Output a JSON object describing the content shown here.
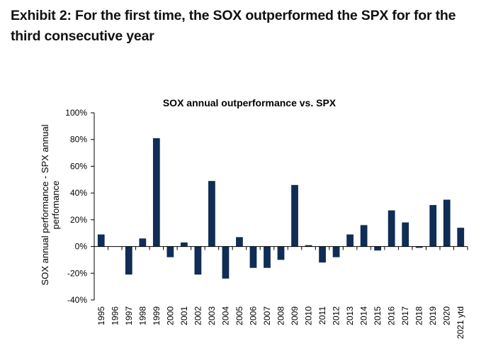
{
  "exhibit_title": "Exhibit 2: For the first time, the SOX outperformed the SPX for for the third consecutive year",
  "chart_data": {
    "type": "bar",
    "title": "SOX annual outperformance vs. SPX",
    "xlabel": "",
    "ylabel": "SOX annual performance - SPX annual perfomance",
    "ylabel_lines": [
      "SOX annual performance - SPX annual",
      "perfomance"
    ],
    "ylim": [
      -40,
      100
    ],
    "yticks": [
      -40,
      -20,
      0,
      20,
      40,
      60,
      80,
      100
    ],
    "ytick_labels": [
      "-40%",
      "-20%",
      "0%",
      "20%",
      "40%",
      "60%",
      "80%",
      "100%"
    ],
    "y_unit": "%",
    "grid": false,
    "bar_color": "#0f2d55",
    "categories": [
      "1995",
      "1996",
      "1997",
      "1998",
      "1999",
      "2000",
      "2001",
      "2002",
      "2003",
      "2004",
      "2005",
      "2006",
      "2007",
      "2008",
      "2009",
      "2010",
      "2011",
      "2012",
      "2013",
      "2014",
      "2015",
      "2016",
      "2017",
      "2018",
      "2019",
      "2020",
      "2021 ytd"
    ],
    "values": [
      9,
      0,
      -21,
      6,
      81,
      -8,
      3,
      -21,
      49,
      -24,
      7,
      -16,
      -16,
      -10,
      46,
      1,
      -12,
      -8,
      9,
      16,
      -3,
      27,
      18,
      -1,
      31,
      35,
      14
    ]
  }
}
